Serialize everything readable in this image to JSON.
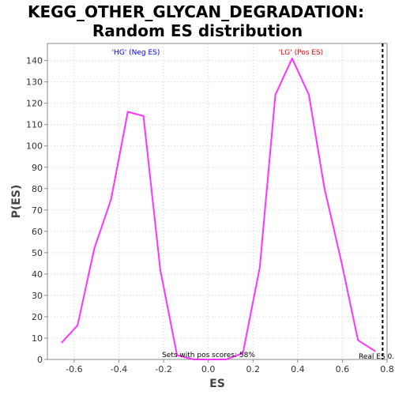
{
  "chart_data": {
    "type": "line",
    "title_lines": [
      "KEGG_OTHER_GLYCAN_DEGRADATION:",
      "Random ES distribution"
    ],
    "xlabel": "ES",
    "ylabel": "P(ES)",
    "xlim": [
      -0.72,
      0.8
    ],
    "ylim": [
      0,
      148
    ],
    "x_ticks": [
      "-0.6",
      "-0.4",
      "-0.2",
      "0.0",
      "0.2",
      "0.4",
      "0.6",
      "0.8"
    ],
    "y_ticks": [
      "0",
      "10",
      "20",
      "30",
      "40",
      "50",
      "60",
      "70",
      "80",
      "90",
      "100",
      "110",
      "120",
      "130",
      "140"
    ],
    "grid": true,
    "series": [
      {
        "color": "#ff33ff",
        "x": [
          -0.655,
          -0.585,
          -0.51,
          -0.435,
          -0.36,
          -0.29,
          -0.215,
          -0.14,
          -0.065,
          0.01,
          0.08,
          0.155,
          0.23,
          0.3,
          0.375,
          0.45,
          0.52,
          0.595,
          0.67,
          0.745
        ],
        "y": [
          8,
          16,
          52,
          75,
          116,
          114,
          42,
          2,
          0,
          0,
          0,
          3,
          43,
          124,
          141,
          124,
          80,
          46,
          9,
          4
        ]
      }
    ],
    "annotations": {
      "neg_label": "'HG' (Neg ES)",
      "pos_label": "'LG' (Pos ES)",
      "pos_scores": "Sets with pos scores: 58%",
      "real_es_label": "Real ES 0.",
      "real_es_value": 0.78,
      "neg_color": "#0000ff",
      "pos_color": "#ff0000"
    }
  }
}
